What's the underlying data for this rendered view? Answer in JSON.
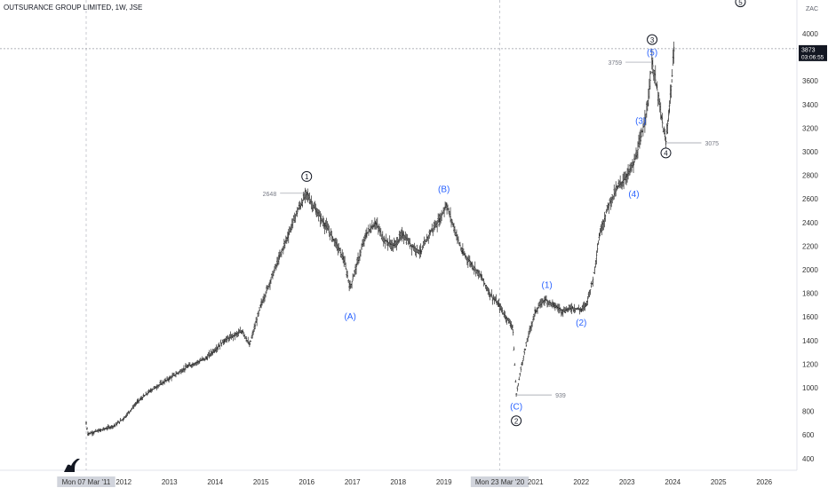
{
  "chart_data": {
    "type": "candlestick",
    "title": "OUTSURANCE GROUP LIMITED, 1W, JSE",
    "currency": "ZAC",
    "current_price": "3873",
    "countdown": "03:06:55",
    "x_tick_labels": [
      {
        "label": "Mon 07 Mar '11",
        "date": 2011.18,
        "highlight": true
      },
      {
        "label": "2012",
        "date": 2012.0
      },
      {
        "label": "2013",
        "date": 2013.0
      },
      {
        "label": "2014",
        "date": 2014.0
      },
      {
        "label": "2015",
        "date": 2015.0
      },
      {
        "label": "2016",
        "date": 2016.0
      },
      {
        "label": "2017",
        "date": 2017.0
      },
      {
        "label": "2018",
        "date": 2018.0
      },
      {
        "label": "2019",
        "date": 2019.0
      },
      {
        "label": "Mon 23 Mar '20",
        "date": 2020.22,
        "highlight": true
      },
      {
        "label": "2021",
        "date": 2021.0
      },
      {
        "label": "2022",
        "date": 2022.0
      },
      {
        "label": "2023",
        "date": 2023.0
      },
      {
        "label": "2024",
        "date": 2024.0
      },
      {
        "label": "2025",
        "date": 2025.0
      },
      {
        "label": "2026",
        "date": 2026.0
      }
    ],
    "y_tick_labels": [
      4000,
      3800,
      3600,
      3400,
      3200,
      3000,
      2800,
      2600,
      2400,
      2200,
      2000,
      1800,
      1600,
      1400,
      1200,
      1000,
      800,
      600,
      400
    ],
    "price_path": [
      [
        2011.18,
        700
      ],
      [
        2011.22,
        610
      ],
      [
        2011.5,
        640
      ],
      [
        2011.8,
        680
      ],
      [
        2012.0,
        740
      ],
      [
        2012.3,
        880
      ],
      [
        2012.6,
        980
      ],
      [
        2013.0,
        1080
      ],
      [
        2013.4,
        1180
      ],
      [
        2013.8,
        1250
      ],
      [
        2014.2,
        1400
      ],
      [
        2014.6,
        1480
      ],
      [
        2014.75,
        1360
      ],
      [
        2015.0,
        1700
      ],
      [
        2015.2,
        1900
      ],
      [
        2015.4,
        2100
      ],
      [
        2015.6,
        2300
      ],
      [
        2015.8,
        2500
      ],
      [
        2016.0,
        2648
      ],
      [
        2016.2,
        2500
      ],
      [
        2016.4,
        2380
      ],
      [
        2016.6,
        2250
      ],
      [
        2016.8,
        2100
      ],
      [
        2016.95,
        1850
      ],
      [
        2017.1,
        2050
      ],
      [
        2017.3,
        2300
      ],
      [
        2017.5,
        2400
      ],
      [
        2017.7,
        2250
      ],
      [
        2017.9,
        2200
      ],
      [
        2018.1,
        2300
      ],
      [
        2018.3,
        2200
      ],
      [
        2018.5,
        2150
      ],
      [
        2018.7,
        2320
      ],
      [
        2018.9,
        2420
      ],
      [
        2019.05,
        2555
      ],
      [
        2019.2,
        2380
      ],
      [
        2019.4,
        2150
      ],
      [
        2019.6,
        2050
      ],
      [
        2019.8,
        1950
      ],
      [
        2020.0,
        1800
      ],
      [
        2020.2,
        1700
      ],
      [
        2020.35,
        1600
      ],
      [
        2020.5,
        1520
      ],
      [
        2020.58,
        939
      ],
      [
        2020.7,
        1200
      ],
      [
        2020.85,
        1450
      ],
      [
        2021.0,
        1650
      ],
      [
        2021.2,
        1750
      ],
      [
        2021.4,
        1700
      ],
      [
        2021.6,
        1650
      ],
      [
        2021.8,
        1680
      ],
      [
        2022.0,
        1660
      ],
      [
        2022.1,
        1700
      ],
      [
        2022.25,
        1900
      ],
      [
        2022.4,
        2300
      ],
      [
        2022.6,
        2550
      ],
      [
        2022.8,
        2700
      ],
      [
        2023.0,
        2800
      ],
      [
        2023.15,
        2900
      ],
      [
        2023.3,
        3100
      ],
      [
        2023.45,
        3400
      ],
      [
        2023.55,
        3759
      ],
      [
        2023.65,
        3550
      ],
      [
        2023.75,
        3300
      ],
      [
        2023.85,
        3075
      ],
      [
        2023.92,
        3350
      ],
      [
        2023.98,
        3600
      ],
      [
        2024.03,
        3873
      ]
    ],
    "price_labels": [
      {
        "text": "2648",
        "date": 2016.0,
        "price": 2648,
        "side": "left"
      },
      {
        "text": "939",
        "date": 2020.58,
        "price": 939,
        "side": "right"
      },
      {
        "text": "3759",
        "date": 2023.55,
        "price": 3759,
        "side": "left"
      },
      {
        "text": "3075",
        "date": 2023.85,
        "price": 3075,
        "side": "right"
      }
    ],
    "wave_labels": [
      {
        "text": "1",
        "circled": true,
        "date": 2016.0,
        "price": 2790
      },
      {
        "text": "(A)",
        "circled": false,
        "date": 2016.95,
        "price": 1600
      },
      {
        "text": "(B)",
        "circled": false,
        "date": 2019.0,
        "price": 2680
      },
      {
        "text": "(C)",
        "circled": false,
        "date": 2020.58,
        "price": 840
      },
      {
        "text": "2",
        "circled": true,
        "date": 2020.58,
        "price": 720
      },
      {
        "text": "(1)",
        "circled": false,
        "date": 2021.25,
        "price": 1870
      },
      {
        "text": "(2)",
        "circled": false,
        "date": 2022.0,
        "price": 1550
      },
      {
        "text": "(3)",
        "circled": false,
        "date": 2023.3,
        "price": 3260
      },
      {
        "text": "(4)",
        "circled": false,
        "date": 2023.15,
        "price": 2640
      },
      {
        "text": "(5)",
        "circled": false,
        "date": 2023.55,
        "price": 3840
      },
      {
        "text": "3",
        "circled": true,
        "date": 2023.55,
        "price": 3950
      },
      {
        "text": "4",
        "circled": true,
        "date": 2023.85,
        "price": 2990
      },
      {
        "text": "5",
        "circled": true,
        "date": 2025.48,
        "price": 4270
      }
    ],
    "colors": {
      "wave_blue": "#2962ff",
      "candle": "#2a2a2a",
      "axis_text": "#333333",
      "muted_label": "#787b86",
      "price_tag_bg": "#131722",
      "highlight_bg": "#d1d4dc"
    }
  }
}
